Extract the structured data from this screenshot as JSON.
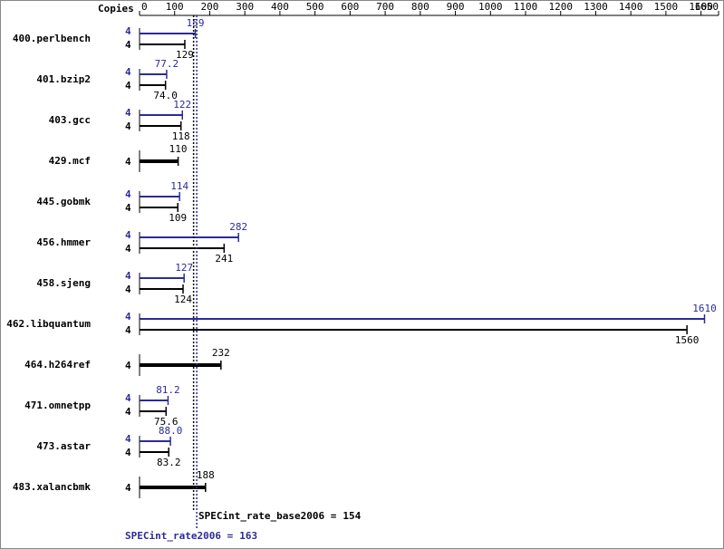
{
  "chart_data": {
    "type": "bar",
    "copies_label": "Copies",
    "categories": [
      "400.perlbench",
      "401.bzip2",
      "403.gcc",
      "429.mcf",
      "445.gobmk",
      "456.hmmer",
      "458.sjeng",
      "462.libquantum",
      "464.h264ref",
      "471.omnetpp",
      "473.astar",
      "483.xalancbmk"
    ],
    "series": [
      {
        "name": "SPECint_rate2006",
        "color": "#2b2b99",
        "values": [
          159,
          77.2,
          122,
          null,
          114,
          282,
          127,
          1610,
          null,
          81.2,
          88.0,
          null
        ],
        "value_labels": [
          "159",
          "77.2",
          "122",
          null,
          "114",
          "282",
          "127",
          "1610",
          null,
          "81.2",
          "88.0",
          null
        ],
        "copies": [
          4,
          4,
          4,
          null,
          4,
          4,
          4,
          4,
          null,
          4,
          4,
          null
        ]
      },
      {
        "name": "SPECint_rate_base2006",
        "color": "#000000",
        "values": [
          129,
          74.0,
          118,
          110,
          109,
          241,
          124,
          1560,
          232,
          75.6,
          83.2,
          188
        ],
        "value_labels": [
          "129",
          "74.0",
          "118",
          "110",
          "109",
          "241",
          "124",
          "1560",
          "232",
          "75.6",
          "83.2",
          "188"
        ],
        "copies": [
          4,
          4,
          4,
          4,
          4,
          4,
          4,
          4,
          4,
          4,
          4,
          4
        ]
      }
    ],
    "reference_lines": [
      {
        "label": "SPECint_rate_base2006 =",
        "value": 154,
        "color": "#000000"
      },
      {
        "label": "SPECint_rate2006 =",
        "value": 163,
        "color": "#2b2b99"
      }
    ],
    "xlim": [
      0,
      1650
    ],
    "xticks": [
      0,
      100,
      200,
      300,
      400,
      500,
      600,
      700,
      800,
      900,
      1000,
      1100,
      1200,
      1300,
      1400,
      1500,
      1600,
      1650
    ]
  }
}
